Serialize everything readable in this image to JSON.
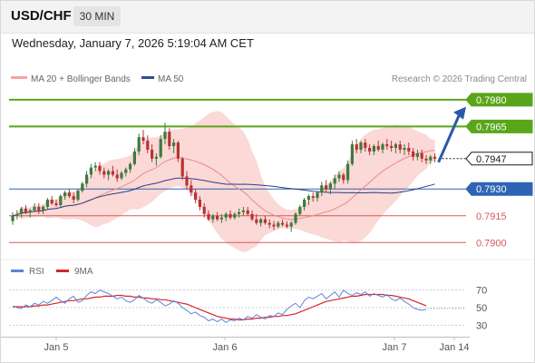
{
  "header": {
    "symbol": "USD/CHF",
    "timeframe": "30 MIN",
    "datetime": "Wednesday, January 7, 2026 5:19:04 AM CET"
  },
  "legend": {
    "ma20": "MA 20 + Bollinger Bands",
    "ma50": "MA 50",
    "credit": "Research © 2026 Trading Central"
  },
  "colors": {
    "up": "#3d7a3d",
    "down": "#b83232",
    "resistance": "#5aa61b",
    "current": "#1a1a1a",
    "support_blue": "#2f64b5",
    "support_red": "#d75a5a",
    "ma20": "#e98c8c",
    "ma50": "#2f3f82",
    "band_fill": "#fad9d7",
    "rsi": "#5d85d6",
    "rsi_ma": "#d8252a",
    "arrow": "#2b58a8"
  },
  "chart_data": [
    {
      "type": "candlestick",
      "ylim": [
        0.7891,
        0.7985
      ],
      "levels": [
        {
          "value": 0.798,
          "label": "0.7980",
          "kind": "resistance"
        },
        {
          "value": 0.7965,
          "label": "0.7965",
          "kind": "resistance"
        },
        {
          "value": 0.7947,
          "label": "0.7947",
          "kind": "current"
        },
        {
          "value": 0.793,
          "label": "0.7930",
          "kind": "support-blue"
        },
        {
          "value": 0.7915,
          "label": "0.7915",
          "kind": "support-red"
        },
        {
          "value": 0.79,
          "label": "0.7900",
          "kind": "support-red"
        }
      ],
      "forecast_arrow": {
        "from": 0.7945,
        "to": 0.7974
      },
      "x_ticks": [
        "Jan 5",
        "Jan 6",
        "Jan 7",
        "Jan 14"
      ],
      "ohlc": [
        [
          0.7912,
          0.7917,
          0.791,
          0.7915
        ],
        [
          0.7915,
          0.7918,
          0.7913,
          0.7916
        ],
        [
          0.7916,
          0.792,
          0.7914,
          0.7919
        ],
        [
          0.7919,
          0.7921,
          0.7916,
          0.7917
        ],
        [
          0.7917,
          0.7919,
          0.7914,
          0.7918
        ],
        [
          0.7918,
          0.7922,
          0.7917,
          0.792
        ],
        [
          0.792,
          0.7922,
          0.7916,
          0.7918
        ],
        [
          0.7918,
          0.7921,
          0.7916,
          0.792
        ],
        [
          0.792,
          0.7925,
          0.7919,
          0.7924
        ],
        [
          0.7924,
          0.7926,
          0.7921,
          0.7922
        ],
        [
          0.7922,
          0.7924,
          0.792,
          0.7921
        ],
        [
          0.7921,
          0.7927,
          0.792,
          0.7926
        ],
        [
          0.7926,
          0.7929,
          0.7924,
          0.7928
        ],
        [
          0.7928,
          0.793,
          0.7925,
          0.7926
        ],
        [
          0.7926,
          0.7928,
          0.7922,
          0.7924
        ],
        [
          0.7924,
          0.793,
          0.7923,
          0.7929
        ],
        [
          0.7929,
          0.7934,
          0.7928,
          0.7933
        ],
        [
          0.7933,
          0.794,
          0.7931,
          0.7938
        ],
        [
          0.7938,
          0.7944,
          0.7936,
          0.7942
        ],
        [
          0.7942,
          0.7945,
          0.794,
          0.7943
        ],
        [
          0.7943,
          0.7945,
          0.7938,
          0.794
        ],
        [
          0.794,
          0.7942,
          0.7936,
          0.7938
        ],
        [
          0.7938,
          0.7941,
          0.7935,
          0.794
        ],
        [
          0.794,
          0.7943,
          0.7937,
          0.7938
        ],
        [
          0.7938,
          0.7941,
          0.7934,
          0.7936
        ],
        [
          0.7936,
          0.794,
          0.7935,
          0.7939
        ],
        [
          0.7939,
          0.7942,
          0.7937,
          0.7941
        ],
        [
          0.7941,
          0.7945,
          0.7939,
          0.7944
        ],
        [
          0.7944,
          0.7953,
          0.7943,
          0.7951
        ],
        [
          0.7951,
          0.7961,
          0.7949,
          0.7959
        ],
        [
          0.7959,
          0.7963,
          0.7955,
          0.7957
        ],
        [
          0.7957,
          0.796,
          0.795,
          0.7952
        ],
        [
          0.7952,
          0.7955,
          0.7945,
          0.7947
        ],
        [
          0.7947,
          0.795,
          0.7943,
          0.7948
        ],
        [
          0.7948,
          0.796,
          0.7947,
          0.7958
        ],
        [
          0.7958,
          0.7967,
          0.7955,
          0.7962
        ],
        [
          0.7962,
          0.7964,
          0.7952,
          0.7954
        ],
        [
          0.7954,
          0.7958,
          0.795,
          0.7956
        ],
        [
          0.7956,
          0.7957,
          0.7945,
          0.7947
        ],
        [
          0.7947,
          0.7948,
          0.7935,
          0.7937
        ],
        [
          0.7937,
          0.794,
          0.793,
          0.7932
        ],
        [
          0.7932,
          0.7935,
          0.7926,
          0.7928
        ],
        [
          0.7928,
          0.793,
          0.7922,
          0.7924
        ],
        [
          0.7924,
          0.7926,
          0.7918,
          0.792
        ],
        [
          0.792,
          0.7922,
          0.7914,
          0.7916
        ],
        [
          0.7916,
          0.7918,
          0.7912,
          0.7913
        ],
        [
          0.7913,
          0.7916,
          0.7911,
          0.7915
        ],
        [
          0.7915,
          0.7917,
          0.7912,
          0.7913
        ],
        [
          0.7913,
          0.7916,
          0.7911,
          0.7914
        ],
        [
          0.7914,
          0.7917,
          0.7912,
          0.7916
        ],
        [
          0.7916,
          0.7918,
          0.7913,
          0.7914
        ],
        [
          0.7914,
          0.7917,
          0.7913,
          0.7916
        ],
        [
          0.7916,
          0.7919,
          0.7914,
          0.7917
        ],
        [
          0.7917,
          0.792,
          0.7915,
          0.7918
        ],
        [
          0.7918,
          0.792,
          0.7915,
          0.7916
        ],
        [
          0.7916,
          0.7918,
          0.7912,
          0.7913
        ],
        [
          0.7913,
          0.7916,
          0.791,
          0.7911
        ],
        [
          0.7911,
          0.7914,
          0.7909,
          0.7913
        ],
        [
          0.7913,
          0.7915,
          0.791,
          0.7911
        ],
        [
          0.7911,
          0.7913,
          0.7908,
          0.791
        ],
        [
          0.791,
          0.7912,
          0.7907,
          0.7909
        ],
        [
          0.7909,
          0.7912,
          0.7908,
          0.7911
        ],
        [
          0.7911,
          0.7913,
          0.7909,
          0.791
        ],
        [
          0.791,
          0.7912,
          0.7908,
          0.7909
        ],
        [
          0.7909,
          0.7912,
          0.7906,
          0.7911
        ],
        [
          0.7911,
          0.7917,
          0.791,
          0.7916
        ],
        [
          0.7916,
          0.7921,
          0.7915,
          0.792
        ],
        [
          0.792,
          0.7925,
          0.7918,
          0.7924
        ],
        [
          0.7924,
          0.7927,
          0.7921,
          0.7926
        ],
        [
          0.7926,
          0.7928,
          0.7923,
          0.7925
        ],
        [
          0.7925,
          0.7929,
          0.7923,
          0.7928
        ],
        [
          0.7928,
          0.7934,
          0.7926,
          0.7932
        ],
        [
          0.7932,
          0.7935,
          0.7928,
          0.793
        ],
        [
          0.793,
          0.7934,
          0.7927,
          0.7933
        ],
        [
          0.7933,
          0.7938,
          0.793,
          0.7936
        ],
        [
          0.7936,
          0.794,
          0.7934,
          0.7938
        ],
        [
          0.7938,
          0.7939,
          0.7933,
          0.7935
        ],
        [
          0.7935,
          0.7946,
          0.7933,
          0.7944
        ],
        [
          0.7944,
          0.7957,
          0.7943,
          0.7955
        ],
        [
          0.7955,
          0.7958,
          0.795,
          0.7952
        ],
        [
          0.7952,
          0.7957,
          0.795,
          0.7956
        ],
        [
          0.7956,
          0.7958,
          0.7951,
          0.7953
        ],
        [
          0.7953,
          0.7955,
          0.7949,
          0.7951
        ],
        [
          0.7951,
          0.7955,
          0.7949,
          0.7954
        ],
        [
          0.7954,
          0.7957,
          0.7951,
          0.7952
        ],
        [
          0.7952,
          0.7956,
          0.795,
          0.7955
        ],
        [
          0.7955,
          0.7958,
          0.7952,
          0.7954
        ],
        [
          0.7954,
          0.7957,
          0.7951,
          0.7953
        ],
        [
          0.7953,
          0.7956,
          0.795,
          0.7955
        ],
        [
          0.7955,
          0.7957,
          0.795,
          0.7952
        ],
        [
          0.7952,
          0.7955,
          0.7949,
          0.7953
        ],
        [
          0.7953,
          0.7956,
          0.7949,
          0.7951
        ],
        [
          0.7951,
          0.7953,
          0.7946,
          0.7948
        ],
        [
          0.7948,
          0.7952,
          0.7946,
          0.795
        ],
        [
          0.795,
          0.7952,
          0.7945,
          0.7947
        ],
        [
          0.7947,
          0.7949,
          0.7944,
          0.7946
        ],
        [
          0.7946,
          0.7949,
          0.7944,
          0.7948
        ],
        [
          0.7948,
          0.795,
          0.7945,
          0.7947
        ]
      ]
    },
    {
      "type": "line",
      "title": "RSI",
      "ylim": [
        20,
        80
      ],
      "y_ticks": [
        70,
        50,
        30
      ],
      "series": [
        {
          "name": "RSI",
          "values": [
            52,
            50,
            49,
            53,
            51,
            55,
            53,
            57,
            55,
            58,
            62,
            58,
            55,
            60,
            63,
            56,
            58,
            64,
            68,
            66,
            70,
            68,
            66,
            63,
            60,
            62,
            58,
            56,
            59,
            64,
            61,
            57,
            55,
            59,
            56,
            52,
            54,
            58,
            55,
            50,
            47,
            43,
            45,
            41,
            39,
            35,
            37,
            34,
            37,
            33,
            36,
            35,
            38,
            36,
            40,
            38,
            42,
            39,
            37,
            41,
            40,
            44,
            42,
            48,
            52,
            55,
            50,
            58,
            62,
            60,
            63,
            66,
            60,
            64,
            68,
            62,
            70,
            66,
            64,
            67,
            65,
            68,
            63,
            66,
            64,
            62,
            65,
            60,
            58,
            61,
            57,
            54,
            50,
            48,
            47,
            48
          ]
        },
        {
          "name": "9MA",
          "values": [
            51,
            51,
            51,
            51,
            51,
            52,
            52,
            53,
            53,
            54,
            55,
            56,
            57,
            58,
            58,
            59,
            60,
            60,
            61,
            62,
            62,
            63,
            63,
            63,
            64,
            64,
            63,
            63,
            62,
            62,
            61,
            61,
            60,
            60,
            59,
            59,
            58,
            57,
            56,
            55,
            54,
            52,
            50,
            48,
            46,
            44,
            42,
            40,
            39,
            38,
            37,
            37,
            36,
            36,
            37,
            37,
            38,
            38,
            39,
            39,
            40,
            40,
            41,
            41,
            42,
            43,
            45,
            47,
            49,
            51,
            53,
            55,
            57,
            58,
            59,
            60,
            61,
            62,
            63,
            63,
            64,
            65,
            65,
            65,
            65,
            65,
            64,
            64,
            63,
            62,
            61,
            60,
            58,
            56,
            54,
            52
          ]
        }
      ]
    }
  ]
}
